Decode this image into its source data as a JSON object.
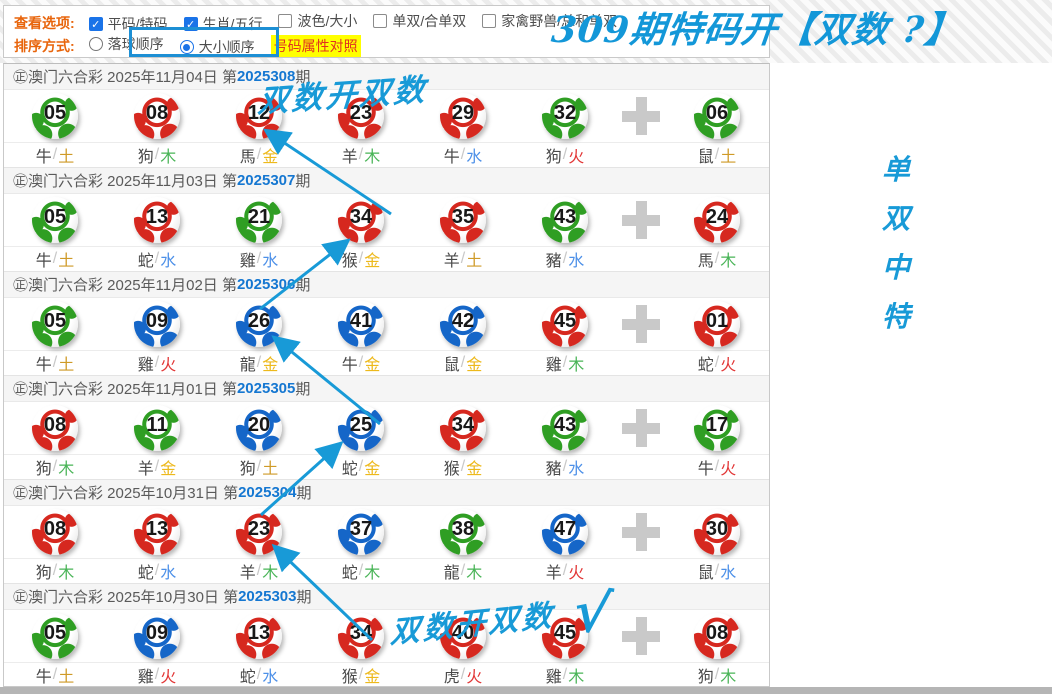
{
  "colors": {
    "balls": {
      "red": "#d6281f",
      "green": "#2f9e23",
      "blue": "#1566c8"
    },
    "elements": {
      "金": "#edb91c",
      "木": "#49b457",
      "水": "#4d90e8",
      "火": "#e23636",
      "土": "#cf9a27"
    },
    "annotation_blue": "#189ad7",
    "issue_blue": "#1577d1"
  },
  "slash": "/",
  "options_bar": {
    "view_label": "查看选项:",
    "checkboxes": [
      {
        "label": "平码/特码",
        "checked": true
      },
      {
        "label": "生肖/五行",
        "checked": true
      },
      {
        "label": "波色/大小",
        "checked": false
      },
      {
        "label": "单双/合单双",
        "checked": false
      },
      {
        "label": "家禽野兽/总和单双",
        "checked": false
      }
    ],
    "sort_label": "排序方式:",
    "radios": [
      {
        "label": "落球顺序",
        "selected": false
      },
      {
        "label": "大小顺序",
        "selected": true
      }
    ],
    "tag": "号码属性对照"
  },
  "headline": "309期特码开【双数 ?】",
  "side_text": [
    "单",
    "双",
    "中",
    "特"
  ],
  "annotations": {
    "top": "双数开双数",
    "bottom": "双数开双数",
    "check": "√"
  },
  "draws": [
    {
      "header": "㊣澳门六合彩 2025年11月04日 第",
      "issue": "2025308",
      "suffix": "期",
      "balls": [
        {
          "n": "05",
          "c": "green",
          "z": "牛",
          "e": "土"
        },
        {
          "n": "08",
          "c": "red",
          "z": "狗",
          "e": "木"
        },
        {
          "n": "12",
          "c": "red",
          "z": "馬",
          "e": "金"
        },
        {
          "n": "23",
          "c": "red",
          "z": "羊",
          "e": "木"
        },
        {
          "n": "29",
          "c": "red",
          "z": "牛",
          "e": "水"
        },
        {
          "n": "32",
          "c": "green",
          "z": "狗",
          "e": "火"
        }
      ],
      "special": {
        "n": "06",
        "c": "green",
        "z": "鼠",
        "e": "土"
      }
    },
    {
      "header": "㊣澳门六合彩 2025年11月03日 第",
      "issue": "2025307",
      "suffix": "期",
      "balls": [
        {
          "n": "05",
          "c": "green",
          "z": "牛",
          "e": "土"
        },
        {
          "n": "13",
          "c": "red",
          "z": "蛇",
          "e": "水"
        },
        {
          "n": "21",
          "c": "green",
          "z": "雞",
          "e": "水"
        },
        {
          "n": "34",
          "c": "red",
          "z": "猴",
          "e": "金"
        },
        {
          "n": "35",
          "c": "red",
          "z": "羊",
          "e": "土"
        },
        {
          "n": "43",
          "c": "green",
          "z": "豬",
          "e": "水"
        }
      ],
      "special": {
        "n": "24",
        "c": "red",
        "z": "馬",
        "e": "木"
      }
    },
    {
      "header": "㊣澳门六合彩 2025年11月02日 第",
      "issue": "2025306",
      "suffix": "期",
      "balls": [
        {
          "n": "05",
          "c": "green",
          "z": "牛",
          "e": "土"
        },
        {
          "n": "09",
          "c": "blue",
          "z": "雞",
          "e": "火"
        },
        {
          "n": "26",
          "c": "blue",
          "z": "龍",
          "e": "金"
        },
        {
          "n": "41",
          "c": "blue",
          "z": "牛",
          "e": "金"
        },
        {
          "n": "42",
          "c": "blue",
          "z": "鼠",
          "e": "金"
        },
        {
          "n": "45",
          "c": "red",
          "z": "雞",
          "e": "木"
        }
      ],
      "special": {
        "n": "01",
        "c": "red",
        "z": "蛇",
        "e": "火"
      }
    },
    {
      "header": "㊣澳门六合彩 2025年11月01日 第",
      "issue": "2025305",
      "suffix": "期",
      "balls": [
        {
          "n": "08",
          "c": "red",
          "z": "狗",
          "e": "木"
        },
        {
          "n": "11",
          "c": "green",
          "z": "羊",
          "e": "金"
        },
        {
          "n": "20",
          "c": "blue",
          "z": "狗",
          "e": "土"
        },
        {
          "n": "25",
          "c": "blue",
          "z": "蛇",
          "e": "金"
        },
        {
          "n": "34",
          "c": "red",
          "z": "猴",
          "e": "金"
        },
        {
          "n": "43",
          "c": "green",
          "z": "豬",
          "e": "水"
        }
      ],
      "special": {
        "n": "17",
        "c": "green",
        "z": "牛",
        "e": "火"
      }
    },
    {
      "header": "㊣澳门六合彩 2025年10月31日 第",
      "issue": "2025304",
      "suffix": "期",
      "balls": [
        {
          "n": "08",
          "c": "red",
          "z": "狗",
          "e": "木"
        },
        {
          "n": "13",
          "c": "red",
          "z": "蛇",
          "e": "水"
        },
        {
          "n": "23",
          "c": "red",
          "z": "羊",
          "e": "木"
        },
        {
          "n": "37",
          "c": "blue",
          "z": "蛇",
          "e": "木"
        },
        {
          "n": "38",
          "c": "green",
          "z": "龍",
          "e": "木"
        },
        {
          "n": "47",
          "c": "blue",
          "z": "羊",
          "e": "火"
        }
      ],
      "special": {
        "n": "30",
        "c": "red",
        "z": "鼠",
        "e": "水"
      }
    },
    {
      "header": "㊣澳门六合彩 2025年10月30日 第",
      "issue": "2025303",
      "suffix": "期",
      "balls": [
        {
          "n": "05",
          "c": "green",
          "z": "牛",
          "e": "土"
        },
        {
          "n": "09",
          "c": "blue",
          "z": "雞",
          "e": "火"
        },
        {
          "n": "13",
          "c": "red",
          "z": "蛇",
          "e": "水"
        },
        {
          "n": "34",
          "c": "red",
          "z": "猴",
          "e": "金"
        },
        {
          "n": "40",
          "c": "red",
          "z": "虎",
          "e": "火"
        },
        {
          "n": "45",
          "c": "red",
          "z": "雞",
          "e": "木"
        }
      ],
      "special": {
        "n": "08",
        "c": "red",
        "z": "狗",
        "e": "木"
      }
    }
  ]
}
